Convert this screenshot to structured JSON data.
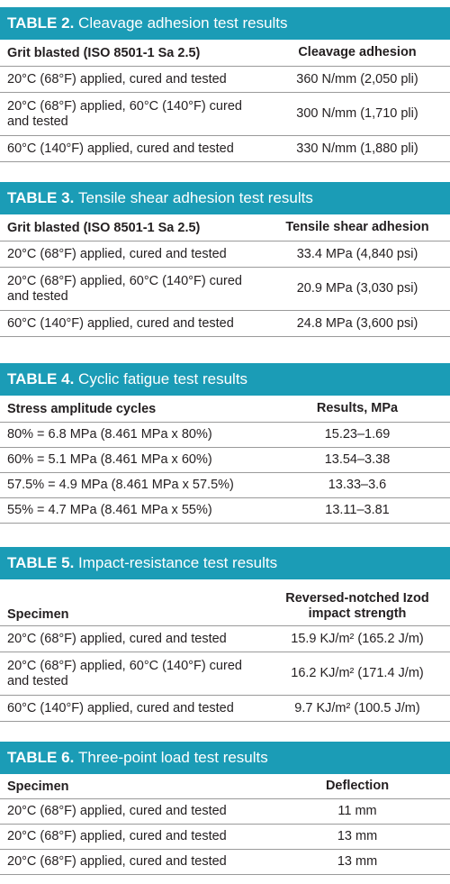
{
  "tables": [
    {
      "num": "TABLE 2.",
      "name": "Cleavage adhesion test results",
      "col1": "Grit blasted (ISO 8501-1 Sa 2.5)",
      "col2": "Cleavage adhesion",
      "rows": [
        {
          "spec": "20°C (68°F) applied, cured and tested",
          "value": "360 N/mm (2,050 pli)"
        },
        {
          "spec": "20°C (68°F) applied, 60°C (140°F) cured and tested",
          "value": "300 N/mm (1,710 pli)"
        },
        {
          "spec": "60°C (140°F) applied, cured and tested",
          "value": "330 N/mm (1,880 pli)"
        }
      ]
    },
    {
      "num": "TABLE 3.",
      "name": "Tensile shear adhesion test results",
      "col1": "Grit blasted (ISO 8501-1 Sa 2.5)",
      "col2": "Tensile shear adhesion",
      "rows": [
        {
          "spec": "20°C (68°F) applied, cured and tested",
          "value": "33.4 MPa (4,840 psi)"
        },
        {
          "spec": "20°C (68°F) applied, 60°C (140°F) cured and tested",
          "value": "20.9 MPa (3,030 psi)"
        },
        {
          "spec": "60°C (140°F) applied, cured and tested",
          "value": "24.8 MPa (3,600 psi)"
        }
      ]
    },
    {
      "num": "TABLE 4.",
      "name": "Cyclic fatigue test results",
      "col1": "Stress amplitude cycles",
      "col2": "Results, MPa",
      "rows": [
        {
          "spec": "80% = 6.8 MPa (8.461 MPa x 80%)",
          "value": "15.23–1.69"
        },
        {
          "spec": "60% = 5.1 MPa (8.461 MPa x 60%)",
          "value": "13.54–3.38"
        },
        {
          "spec": "57.5% = 4.9 MPa (8.461 MPa x 57.5%)",
          "value": "13.33–3.6"
        },
        {
          "spec": "55% = 4.7 MPa (8.461 MPa x 55%)",
          "value": "13.11–3.81"
        }
      ]
    },
    {
      "num": "TABLE 5.",
      "name": "Impact-resistance test results",
      "col1": "Specimen",
      "col2": "Reversed-notched Izod impact strength",
      "rows": [
        {
          "spec": "20°C (68°F) applied, cured and tested",
          "value": "15.9 KJ/m² (165.2 J/m)"
        },
        {
          "spec": "20°C (68°F) applied, 60°C (140°F) cured and tested",
          "value": "16.2 KJ/m² (171.4 J/m)"
        },
        {
          "spec": "60°C (140°F) applied, cured and tested",
          "value": "9.7 KJ/m² (100.5 J/m)"
        }
      ]
    },
    {
      "num": "TABLE 6.",
      "name": "Three-point load test results",
      "col1": "Specimen",
      "col2": "Deflection",
      "rows": [
        {
          "spec": "20°C (68°F) applied, cured and tested",
          "value": "11 mm"
        },
        {
          "spec": "20°C (68°F) applied, cured and tested",
          "value": "13 mm"
        },
        {
          "spec": "20°C (68°F) applied, cured and tested",
          "value": "13 mm"
        }
      ]
    }
  ]
}
